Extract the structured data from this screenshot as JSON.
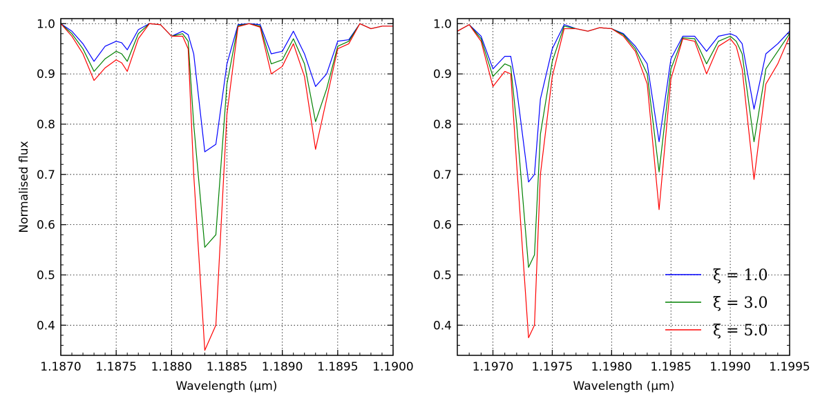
{
  "chart_data": [
    {
      "type": "line",
      "xlabel": "Wavelength (μm)",
      "ylabel": "Normalised flux",
      "xlim": [
        1.187,
        1.19
      ],
      "ylim": [
        0.34,
        1.01
      ],
      "xticks": [
        1.187,
        1.1875,
        1.188,
        1.1885,
        1.189,
        1.1895,
        1.19
      ],
      "xtick_labels": [
        "1.1870",
        "1.1875",
        "1.1880",
        "1.1885",
        "1.1890",
        "1.1895",
        "1.1900"
      ],
      "yticks": [
        0.4,
        0.5,
        0.6,
        0.7,
        0.8,
        0.9,
        1.0
      ],
      "ytick_labels": [
        "0.4",
        "0.5",
        "0.6",
        "0.7",
        "0.8",
        "0.9",
        "1.0"
      ],
      "grid": true,
      "series": [
        {
          "name": "ξ = 1.0",
          "color": "#0000ff",
          "x": [
            1.187,
            1.1871,
            1.1872,
            1.1873,
            1.1874,
            1.1875,
            1.18755,
            1.1876,
            1.1877,
            1.1878,
            1.1879,
            1.188,
            1.1881,
            1.18815,
            1.1882,
            1.1883,
            1.1884,
            1.1885,
            1.1886,
            1.1887,
            1.1888,
            1.1889,
            1.189,
            1.1891,
            1.1892,
            1.1893,
            1.1894,
            1.1895,
            1.1896,
            1.1897,
            1.1898,
            1.1899,
            1.19
          ],
          "y": [
            1.0,
            0.985,
            0.96,
            0.925,
            0.955,
            0.965,
            0.962,
            0.948,
            0.988,
            1.0,
            0.998,
            0.975,
            0.985,
            0.978,
            0.94,
            0.745,
            0.76,
            0.92,
            0.998,
            1.0,
            0.998,
            0.94,
            0.945,
            0.985,
            0.94,
            0.875,
            0.9,
            0.965,
            0.968,
            1.0,
            0.99,
            0.995,
            0.995
          ]
        },
        {
          "name": "ξ = 3.0",
          "color": "#008000",
          "x": [
            1.187,
            1.1871,
            1.1872,
            1.1873,
            1.1874,
            1.1875,
            1.18755,
            1.1876,
            1.1877,
            1.1878,
            1.1879,
            1.188,
            1.1881,
            1.18815,
            1.1882,
            1.1883,
            1.1884,
            1.1885,
            1.1886,
            1.1887,
            1.1888,
            1.1889,
            1.189,
            1.1891,
            1.1892,
            1.1893,
            1.1894,
            1.1895,
            1.1896,
            1.1897,
            1.1898,
            1.1899,
            1.19
          ],
          "y": [
            1.0,
            0.98,
            0.95,
            0.905,
            0.93,
            0.945,
            0.94,
            0.925,
            0.98,
            1.0,
            0.998,
            0.975,
            0.98,
            0.965,
            0.8,
            0.555,
            0.58,
            0.88,
            0.996,
            1.0,
            0.995,
            0.92,
            0.928,
            0.97,
            0.92,
            0.805,
            0.87,
            0.955,
            0.965,
            1.0,
            0.99,
            0.995,
            0.995
          ]
        },
        {
          "name": "ξ = 5.0",
          "color": "#ff0000",
          "x": [
            1.187,
            1.1871,
            1.1872,
            1.1873,
            1.1874,
            1.1875,
            1.18755,
            1.1876,
            1.1877,
            1.1878,
            1.1879,
            1.188,
            1.1881,
            1.18815,
            1.1882,
            1.1883,
            1.1884,
            1.1885,
            1.1886,
            1.1887,
            1.1888,
            1.1889,
            1.189,
            1.1891,
            1.1892,
            1.1893,
            1.1894,
            1.1895,
            1.1896,
            1.1897,
            1.1898,
            1.1899,
            1.19
          ],
          "y": [
            1.0,
            0.975,
            0.94,
            0.887,
            0.912,
            0.928,
            0.922,
            0.905,
            0.97,
            1.0,
            0.998,
            0.975,
            0.975,
            0.95,
            0.7,
            0.35,
            0.4,
            0.82,
            0.994,
            1.0,
            0.993,
            0.9,
            0.915,
            0.96,
            0.895,
            0.75,
            0.85,
            0.95,
            0.96,
            1.0,
            0.99,
            0.995,
            0.995
          ]
        }
      ]
    },
    {
      "type": "line",
      "xlabel": "Wavelength (μm)",
      "ylabel": "",
      "xlim": [
        1.1967,
        1.1995
      ],
      "ylim": [
        0.34,
        1.01
      ],
      "xticks": [
        1.197,
        1.1975,
        1.198,
        1.1985,
        1.199,
        1.1995
      ],
      "xtick_labels": [
        "1.1970",
        "1.1975",
        "1.1980",
        "1.1985",
        "1.1990",
        "1.1995"
      ],
      "yticks": [
        0.4,
        0.5,
        0.6,
        0.7,
        0.8,
        0.9,
        1.0
      ],
      "ytick_labels": [
        "0.4",
        "0.5",
        "0.6",
        "0.7",
        "0.8",
        "0.9",
        "1.0"
      ],
      "grid": true,
      "legend": "lower right",
      "series": [
        {
          "name": "ξ = 1.0",
          "color": "#0000ff",
          "x": [
            1.1967,
            1.1968,
            1.1969,
            1.197,
            1.1971,
            1.19715,
            1.1972,
            1.1973,
            1.19735,
            1.1974,
            1.1975,
            1.1976,
            1.1977,
            1.1978,
            1.1979,
            1.198,
            1.1981,
            1.1982,
            1.1983,
            1.1984,
            1.1985,
            1.1986,
            1.1987,
            1.1988,
            1.1989,
            1.199,
            1.19905,
            1.1991,
            1.1992,
            1.1993,
            1.1994,
            1.1995
          ],
          "y": [
            0.985,
            0.998,
            0.975,
            0.91,
            0.935,
            0.935,
            0.87,
            0.685,
            0.7,
            0.85,
            0.95,
            0.998,
            0.99,
            0.985,
            0.992,
            0.99,
            0.98,
            0.955,
            0.92,
            0.765,
            0.93,
            0.975,
            0.975,
            0.945,
            0.975,
            0.98,
            0.975,
            0.96,
            0.83,
            0.94,
            0.96,
            0.985
          ]
        },
        {
          "name": "ξ = 3.0",
          "color": "#008000",
          "x": [
            1.1967,
            1.1968,
            1.1969,
            1.197,
            1.1971,
            1.19715,
            1.1972,
            1.1973,
            1.19735,
            1.1974,
            1.1975,
            1.1976,
            1.1977,
            1.1978,
            1.1979,
            1.198,
            1.1981,
            1.1982,
            1.1983,
            1.1984,
            1.1985,
            1.1986,
            1.1987,
            1.1988,
            1.1989,
            1.199,
            1.19905,
            1.1991,
            1.1992,
            1.1993,
            1.1994,
            1.1995
          ],
          "y": [
            0.985,
            0.998,
            0.97,
            0.895,
            0.92,
            0.915,
            0.8,
            0.515,
            0.54,
            0.78,
            0.925,
            0.995,
            0.99,
            0.985,
            0.992,
            0.99,
            0.978,
            0.95,
            0.9,
            0.705,
            0.91,
            0.972,
            0.97,
            0.92,
            0.965,
            0.975,
            0.965,
            0.94,
            0.765,
            0.91,
            0.945,
            0.98
          ]
        },
        {
          "name": "ξ = 5.0",
          "color": "#ff0000",
          "x": [
            1.1967,
            1.1968,
            1.1969,
            1.197,
            1.1971,
            1.19715,
            1.1972,
            1.1973,
            1.19735,
            1.1974,
            1.1975,
            1.1976,
            1.1977,
            1.1978,
            1.1979,
            1.198,
            1.1981,
            1.1982,
            1.1983,
            1.1984,
            1.1985,
            1.1986,
            1.1987,
            1.1988,
            1.1989,
            1.199,
            1.19905,
            1.1991,
            1.1992,
            1.1993,
            1.1994,
            1.1995
          ],
          "y": [
            0.985,
            0.998,
            0.965,
            0.875,
            0.905,
            0.9,
            0.72,
            0.375,
            0.4,
            0.7,
            0.895,
            0.99,
            0.99,
            0.985,
            0.992,
            0.99,
            0.975,
            0.945,
            0.88,
            0.63,
            0.89,
            0.97,
            0.965,
            0.9,
            0.955,
            0.97,
            0.955,
            0.91,
            0.69,
            0.88,
            0.92,
            0.975
          ]
        }
      ]
    }
  ]
}
